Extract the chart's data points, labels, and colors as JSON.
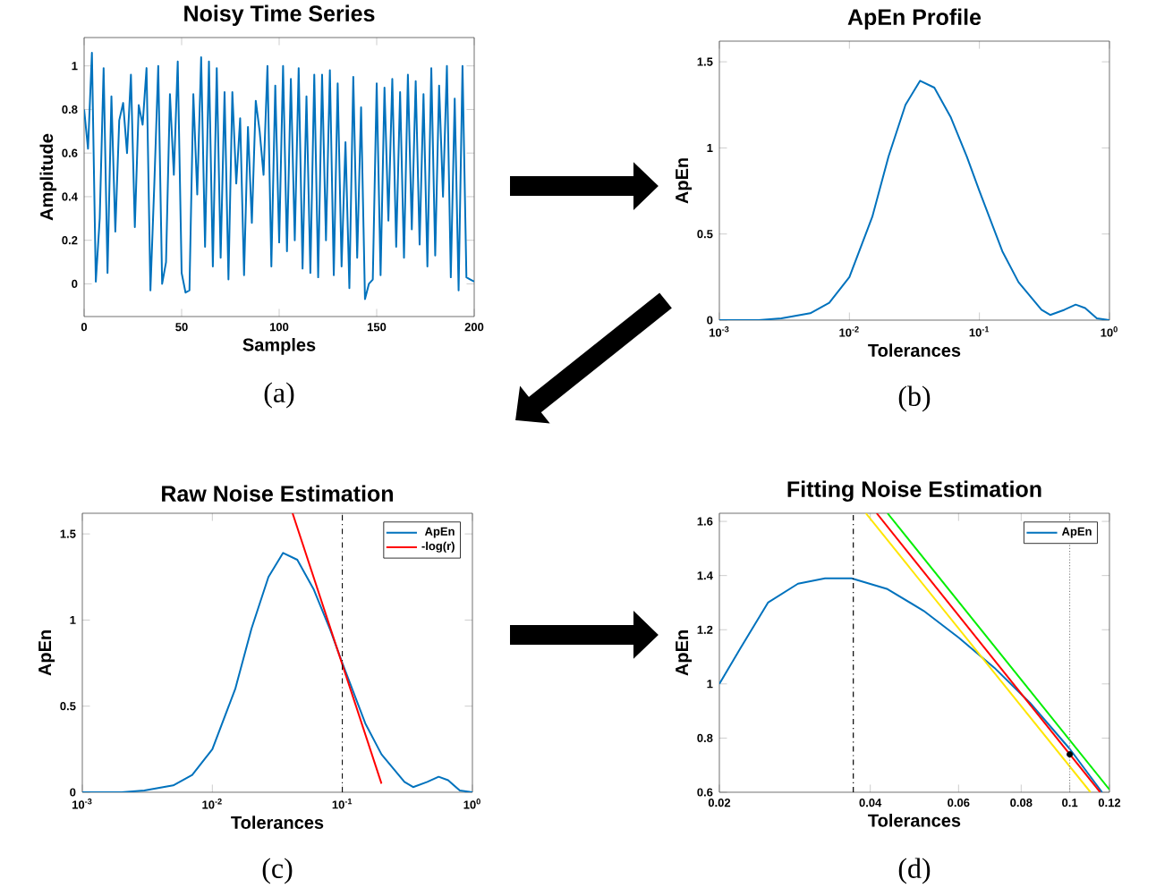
{
  "chart_data": [
    {
      "type": "line",
      "title": "Noisy Time Series",
      "xlabel": "Samples",
      "ylabel": "Amplitude",
      "color": "#0072bd",
      "x": [
        0,
        2,
        4,
        6,
        8,
        10,
        12,
        14,
        16,
        18,
        20,
        22,
        24,
        26,
        28,
        30,
        32,
        34,
        36,
        38,
        40,
        42,
        44,
        46,
        48,
        50,
        52,
        54,
        56,
        58,
        60,
        62,
        64,
        66,
        68,
        70,
        72,
        74,
        76,
        78,
        80,
        82,
        84,
        86,
        88,
        90,
        92,
        94,
        96,
        98,
        100,
        102,
        104,
        106,
        108,
        110,
        112,
        114,
        116,
        118,
        120,
        122,
        124,
        126,
        128,
        130,
        132,
        134,
        136,
        138,
        140,
        142,
        144,
        146,
        148,
        150,
        152,
        154,
        156,
        158,
        160,
        162,
        164,
        166,
        168,
        170,
        172,
        174,
        176,
        178,
        180,
        182,
        184,
        186,
        188,
        190,
        192,
        194,
        196,
        198,
        200
      ],
      "values": [
        0.8,
        0.62,
        1.06,
        0.01,
        0.3,
        0.99,
        0.05,
        0.86,
        0.24,
        0.75,
        0.83,
        0.6,
        0.96,
        0.26,
        0.82,
        0.73,
        0.99,
        -0.03,
        0.46,
        1.0,
        0.0,
        0.1,
        0.87,
        0.5,
        1.02,
        0.05,
        -0.04,
        -0.03,
        0.87,
        0.41,
        1.04,
        0.17,
        1.02,
        0.08,
        0.99,
        0.12,
        0.88,
        0.02,
        0.88,
        0.46,
        0.76,
        0.04,
        0.72,
        0.28,
        0.84,
        0.7,
        0.5,
        1.0,
        0.08,
        0.91,
        0.19,
        1.0,
        0.15,
        0.94,
        0.2,
        0.99,
        0.07,
        0.86,
        0.05,
        0.96,
        0.03,
        0.96,
        0.2,
        0.98,
        0.04,
        0.92,
        0.08,
        0.65,
        -0.02,
        0.95,
        0.12,
        0.81,
        -0.07,
        0.0,
        0.02,
        0.92,
        0.04,
        0.9,
        0.29,
        0.94,
        0.17,
        0.88,
        0.12,
        0.96,
        0.25,
        0.93,
        0.18,
        0.87,
        0.08,
        0.99,
        0.13,
        0.91,
        0.4,
        1.0,
        0.03,
        0.85,
        -0.03,
        1.0,
        0.03,
        0.02,
        0.01
      ],
      "xlim": [
        0,
        200
      ],
      "ylim": [
        -0.15,
        1.13
      ],
      "xticks": [
        0,
        50,
        100,
        150,
        200
      ],
      "yticks": [
        0,
        0.2,
        0.4,
        0.6,
        0.8,
        1
      ],
      "annotations": [
        "(a)"
      ]
    },
    {
      "type": "line",
      "title": "ApEn Profile",
      "xlabel": "Tolerances",
      "ylabel": "ApEn",
      "color": "#0072bd",
      "log": "x",
      "x": [
        0.001,
        0.002,
        0.003,
        0.005,
        0.007,
        0.01,
        0.015,
        0.02,
        0.027,
        0.035,
        0.045,
        0.06,
        0.08,
        0.1,
        0.15,
        0.2,
        0.3,
        0.35,
        0.45,
        0.55,
        0.65,
        0.8,
        1
      ],
      "values": [
        0,
        0,
        0.01,
        0.04,
        0.1,
        0.25,
        0.6,
        0.95,
        1.25,
        1.39,
        1.35,
        1.18,
        0.95,
        0.75,
        0.4,
        0.22,
        0.06,
        0.03,
        0.06,
        0.09,
        0.07,
        0.01,
        0
      ],
      "xlim": [
        0.001,
        1
      ],
      "ylim": [
        0,
        1.62
      ],
      "xticks": [
        {
          "value": 0.001,
          "label": "10$^{-3}$"
        },
        {
          "value": 0.01,
          "label": "10$^{-2}$"
        },
        {
          "value": 0.1,
          "label": "10$^{-1}$"
        },
        {
          "value": 1,
          "label": "10$^{0}$"
        }
      ],
      "yticks": [
        0,
        0.5,
        1,
        1.5
      ],
      "annotations": [
        "(b)"
      ]
    },
    {
      "type": "line",
      "title": "Raw Noise Estimation",
      "xlabel": "Tolerances",
      "ylabel": "ApEn",
      "log": "x",
      "legend": "top right",
      "series": [
        {
          "name": "ApEn",
          "color": "#0072bd",
          "x": [
            0.001,
            0.002,
            0.003,
            0.005,
            0.007,
            0.01,
            0.015,
            0.02,
            0.027,
            0.035,
            0.045,
            0.06,
            0.08,
            0.1,
            0.15,
            0.2,
            0.3,
            0.35,
            0.45,
            0.55,
            0.65,
            0.8,
            1
          ],
          "values": [
            0,
            0,
            0.01,
            0.04,
            0.1,
            0.25,
            0.6,
            0.95,
            1.25,
            1.39,
            1.35,
            1.18,
            0.95,
            0.75,
            0.4,
            0.22,
            0.06,
            0.03,
            0.06,
            0.09,
            0.07,
            0.01,
            0
          ]
        },
        {
          "name": "-log(r)",
          "color": "#ff0000",
          "x": [
            0.0414,
            0.2
          ],
          "values": [
            1.62,
            0.05
          ]
        }
      ],
      "ref_lines": [
        {
          "axis": "x",
          "value": 0.1,
          "color": "#000000",
          "line_style": "dashed"
        }
      ],
      "xlim": [
        0.001,
        1
      ],
      "ylim": [
        0,
        1.62
      ],
      "xticks": [
        {
          "value": 0.001,
          "label": "10$^{-3}$"
        },
        {
          "value": 0.01,
          "label": "10$^{-2}$"
        },
        {
          "value": 0.1,
          "label": "10$^{-1}$"
        },
        {
          "value": 1,
          "label": "10$^{0}$"
        }
      ],
      "yticks": [
        0,
        0.5,
        1,
        1.5
      ],
      "annotations": [
        "(c)"
      ]
    },
    {
      "type": "line",
      "title": "Fitting Noise Estimation",
      "xlabel": "Tolerances",
      "ylabel": "ApEn",
      "log": "x",
      "legend": "top right",
      "series": [
        {
          "name": "ApEn",
          "color": "#0072bd",
          "x": [
            0.02,
            0.022,
            0.025,
            0.0287,
            0.0325,
            0.0367,
            0.0433,
            0.0511,
            0.0601,
            0.0707,
            0.0833,
            0.1,
            0.116
          ],
          "values": [
            1.0,
            1.13,
            1.3,
            1.37,
            1.39,
            1.39,
            1.35,
            1.27,
            1.17,
            1.06,
            0.93,
            0.76,
            0.6
          ]
        },
        {
          "color": "#ffe600",
          "x": [
            0.0392,
            0.11
          ],
          "values": [
            1.63,
            0.6
          ]
        },
        {
          "color": "#ff0000",
          "x": [
            0.0412,
            0.115
          ],
          "values": [
            1.63,
            0.6
          ]
        },
        {
          "color": "#00ee00",
          "x": [
            0.0433,
            0.12
          ],
          "values": [
            1.63,
            0.61
          ]
        },
        {
          "type": "scatter",
          "marker": "circle",
          "color": "#000000",
          "x": [
            0.1
          ],
          "values": [
            0.74
          ]
        }
      ],
      "ref_lines": [
        {
          "axis": "x",
          "value": 0.037,
          "color": "#000000",
          "line_style": "dashed"
        },
        {
          "axis": "x",
          "value": 0.1,
          "color": "#808080",
          "line_style": "dotted"
        }
      ],
      "xlim": [
        0.02,
        0.12
      ],
      "ylim": [
        0.6,
        1.63
      ],
      "xticks": [
        0.02,
        0.04,
        0.06,
        0.08,
        0.1,
        0.12
      ],
      "yticks": [
        0.6,
        0.8,
        1,
        1.2,
        1.4,
        1.6
      ],
      "annotations": [
        "(d)"
      ]
    }
  ]
}
